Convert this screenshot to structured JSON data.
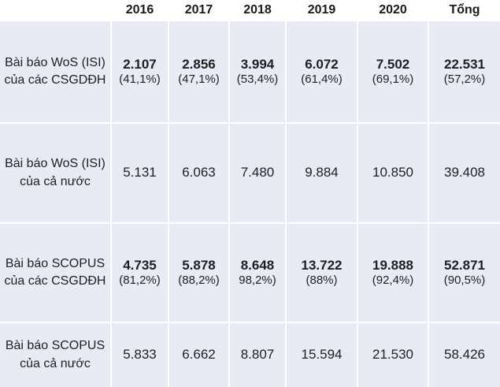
{
  "colors": {
    "row_background": "#e8ebf4",
    "header_background": "#ffffff",
    "separator": "#ffffff",
    "text": "#1f1f1f"
  },
  "chart_data": {
    "type": "table",
    "columns": [
      "",
      "2016",
      "2017",
      "2018",
      "2019",
      "2020",
      "Tổng"
    ],
    "rows": [
      {
        "label": "Bài báo WoS (ISI) của các CSGDĐH",
        "values": [
          "2.107",
          "2.856",
          "3.994",
          "6.072",
          "7.502",
          "22.531"
        ],
        "percents": [
          "(41,1%)",
          "(47,1%)",
          "(53,4%)",
          "(61,4%)",
          "(69,1%)",
          "(57,2%)"
        ],
        "bold": true
      },
      {
        "label": "Bài báo WoS (ISI) của cả nước",
        "values": [
          "5.131",
          "6.063",
          "7.480",
          "9.884",
          "10.850",
          "39.408"
        ],
        "bold": false
      },
      {
        "label": "Bài báo SCOPUS của các CSGDĐH",
        "values": [
          "4.735",
          "5.878",
          "8.648",
          "13.722",
          "19.888",
          "52.871"
        ],
        "percents": [
          "(81,2%)",
          "(88,2%)",
          "98,2%)",
          "(88%)",
          "(92,4%)",
          "(90,5%)"
        ],
        "bold": true
      },
      {
        "label": "Bài báo SCOPUS của cả nước",
        "values": [
          "5.833",
          "6.662",
          "8.807",
          "15.594",
          "21.530",
          "58.426"
        ],
        "bold": false
      }
    ]
  }
}
